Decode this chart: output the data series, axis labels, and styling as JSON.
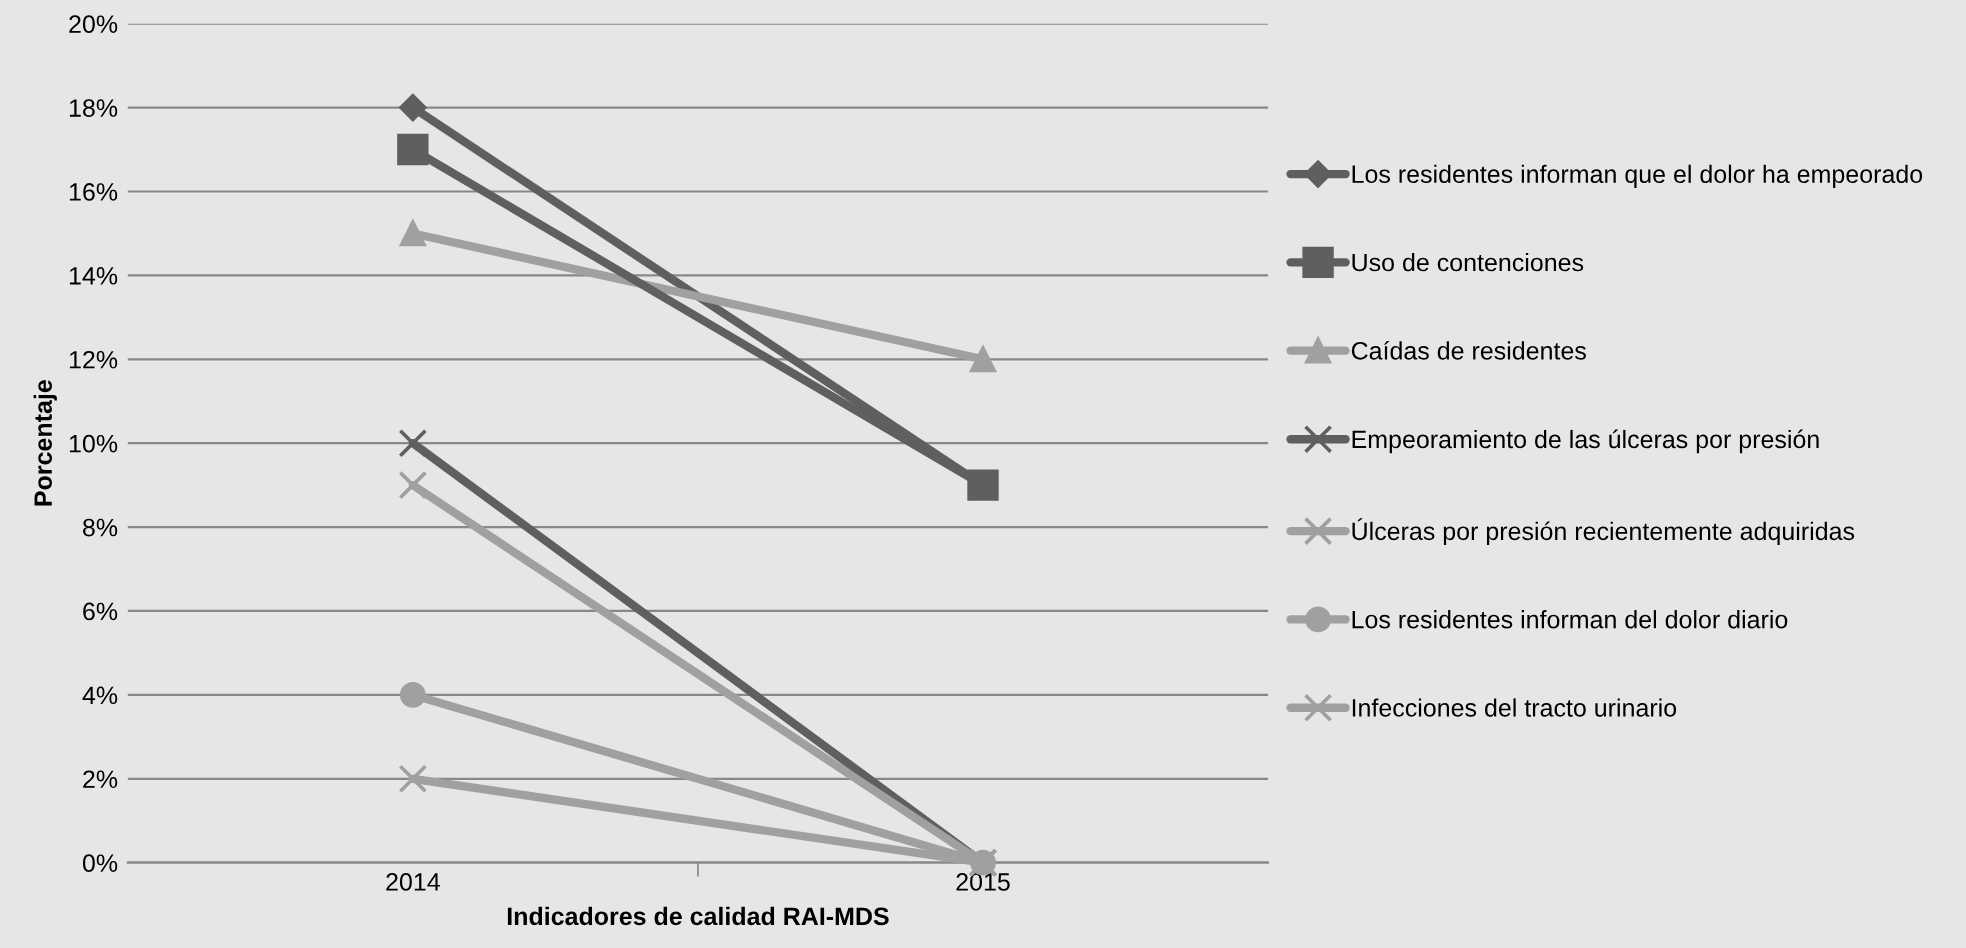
{
  "chart_data": {
    "type": "line",
    "xlabel": "Indicadores de calidad RAI-MDS",
    "ylabel": "Porcentaje",
    "categories": [
      "2014",
      "2015"
    ],
    "series": [
      {
        "name": "Los residentes informan que el dolor ha empeorado",
        "color": "#5f5f5f",
        "marker": "diamond",
        "values": [
          18,
          9
        ]
      },
      {
        "name": "Uso de contenciones",
        "color": "#5f5f5f",
        "marker": "square",
        "values": [
          17,
          9
        ]
      },
      {
        "name": "Caídas de residentes",
        "color": "#a0a0a0",
        "marker": "triangle",
        "values": [
          15,
          12
        ]
      },
      {
        "name": "Empeoramiento de las úlceras por presión",
        "color": "#5f5f5f",
        "marker": "cross",
        "values": [
          10,
          0
        ]
      },
      {
        "name": "Úlceras por presión recientemente adquiridas",
        "color": "#a0a0a0",
        "marker": "cross",
        "values": [
          9,
          0
        ]
      },
      {
        "name": "Los residentes informan del dolor diario",
        "color": "#a0a0a0",
        "marker": "circle",
        "values": [
          4,
          0
        ]
      },
      {
        "name": "Infecciones del tracto urinario",
        "color": "#a0a0a0",
        "marker": "cross",
        "values": [
          2,
          0
        ]
      }
    ],
    "ylim": [
      0,
      20
    ],
    "yticks": [
      {
        "value": 0,
        "label": "0%"
      },
      {
        "value": 2,
        "label": "2%"
      },
      {
        "value": 4,
        "label": "4%"
      },
      {
        "value": 6,
        "label": "6%"
      },
      {
        "value": 8,
        "label": "8%"
      },
      {
        "value": 10,
        "label": "10%"
      },
      {
        "value": 12,
        "label": "12%"
      },
      {
        "value": 14,
        "label": "14%"
      },
      {
        "value": 16,
        "label": "16%"
      },
      {
        "value": 18,
        "label": "18%"
      },
      {
        "value": 20,
        "label": "20%"
      }
    ],
    "grid": "y",
    "legend": "right",
    "line_style": "solid"
  }
}
